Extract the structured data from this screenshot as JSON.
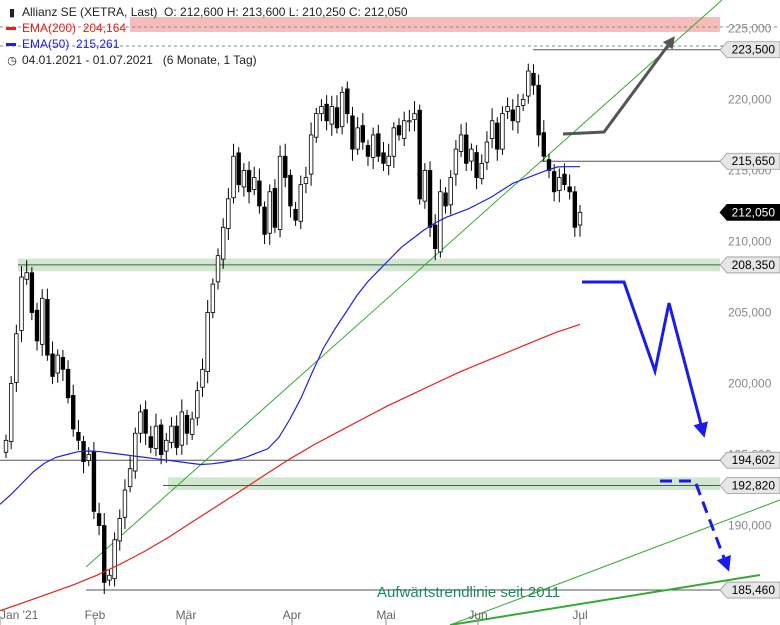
{
  "header": {
    "instrument": "Allianz SE (XETRA, Last)",
    "ohlc": "O: 212,600  H: 213,600  L: 210,250  C: 212,050",
    "ema200_label": "EMA(200)",
    "ema200_value": "204,164",
    "ema50_label": "EMA(50)",
    "ema50_value": "215,261",
    "range_label": "04.01.2021 - 01.07.2021",
    "period_label": "(6 Monate, 1 Tag)",
    "instrument_icon": "candlestick-icon",
    "range_icon": "clock-icon"
  },
  "colors": {
    "ema200": "#e8201a",
    "ema50": "#2020e0",
    "trend": "#33aa33",
    "zone_fill": "#cfe8cf",
    "target_zone": "#f6bcbc",
    "projection": "#1a1aee",
    "arrow_up": "#555555",
    "last_price_bg": "#000000"
  },
  "chart_data": {
    "type": "candlestick",
    "ylim": [
      183000,
      227000
    ],
    "x_tick_labels": [
      "Jan '21",
      "Feb",
      "Mär",
      "Apr",
      "Mai",
      "Jun",
      "Jul"
    ],
    "x_tick_dates": [
      "2021-01-04",
      "2021-02-01",
      "2021-03-01",
      "2021-04-01",
      "2021-05-03",
      "2021-06-01",
      "2021-07-01"
    ],
    "y_ticks": [
      190000,
      195000,
      200000,
      205000,
      210000,
      215000,
      220000,
      225000
    ],
    "y_tick_labels": [
      "190,000",
      "195,000",
      "200,000",
      "205,000",
      "210,000",
      "215,000",
      "220,000",
      "225,000"
    ],
    "closes": [
      196000,
      200000,
      203500,
      207500,
      207800,
      205000,
      203000,
      206000,
      202000,
      200500,
      202000,
      201000,
      199000,
      196800,
      196000,
      194500,
      195000,
      191000,
      190000,
      186000,
      186500,
      189000,
      190500,
      192500,
      194000,
      196500,
      198000,
      196500,
      195500,
      197000,
      195000,
      196000,
      197000,
      195500,
      198000,
      196500,
      197500,
      199500,
      201000,
      205000,
      207000,
      209000,
      211000,
      213000,
      216000,
      214000,
      215000,
      213500,
      214500,
      212500,
      210500,
      213500,
      211000,
      216000,
      214500,
      212500,
      211500,
      214000,
      214500,
      217500,
      219000,
      219500,
      218500,
      219500,
      218000,
      220500,
      219000,
      216500,
      218000,
      217000,
      216000,
      217500,
      216000,
      215500,
      216000,
      218000,
      217500,
      218500,
      218500,
      219000,
      213000,
      215000,
      211000,
      209500,
      213500,
      212500,
      214500,
      216500,
      217500,
      215500,
      216500,
      214500,
      215500,
      217000,
      218500,
      216500,
      219000,
      219500,
      218500,
      219500,
      220000,
      222000,
      221000,
      217500,
      216000,
      215000,
      213500,
      214500,
      214000,
      213500,
      211000,
      212050
    ],
    "ema50": [
      191500,
      192200,
      193000,
      193800,
      194400,
      194800,
      195000,
      195200,
      195250,
      195200,
      195100,
      195000,
      194900,
      194800,
      194700,
      194600,
      194500,
      194400,
      194300,
      194350,
      194450,
      194600,
      194800,
      195100,
      195400,
      196200,
      197500,
      199000,
      200800,
      202500,
      203800,
      205000,
      206200,
      207200,
      208000,
      208800,
      209600,
      210200,
      210800,
      211300,
      211700,
      212000,
      212300,
      212700,
      213100,
      213600,
      214100,
      214400,
      214700,
      215000,
      215250,
      215261,
      215261
    ],
    "ema200": [
      184000,
      184600,
      185200,
      185800,
      186500,
      187300,
      188200,
      189200,
      190300,
      191400,
      192500,
      193600,
      194700,
      195700,
      196600,
      197500,
      198400,
      199200,
      200000,
      200800,
      201500,
      202200,
      202900,
      203600,
      204164
    ],
    "annotations": [
      "223,500",
      "215,650",
      "212,050",
      "208,350",
      "194,602",
      "192,820",
      "185,460",
      "Aufwärtstrendlinie seit 2011"
    ],
    "support_zones": [
      [
        207900,
        208800
      ],
      [
        192500,
        193400
      ]
    ],
    "target_zone": [
      224750,
      225800
    ],
    "grid": false,
    "legend": "top-left"
  }
}
